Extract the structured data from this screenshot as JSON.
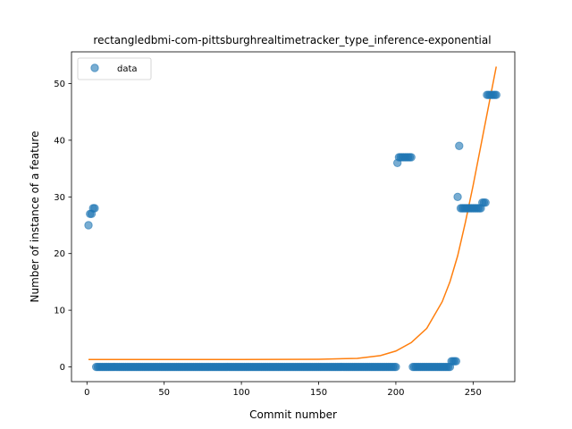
{
  "chart_data": {
    "type": "scatter",
    "title": "rectangledbmi-com-pittsburghrealtimetracker_type_inference-exponential",
    "xlabel": "Commit number",
    "ylabel": "Number of instance of a feature",
    "xlim": [
      -10,
      277
    ],
    "ylim": [
      -2.6,
      55.6
    ],
    "xticks": [
      0,
      50,
      100,
      150,
      200,
      250
    ],
    "yticks": [
      0,
      10,
      20,
      30,
      40,
      50
    ],
    "legend_position": "top-left",
    "grid": false,
    "series": [
      {
        "name": "data",
        "kind": "points",
        "color": "#1f77b4",
        "runs": [
          {
            "x_start": 1,
            "x_end": 1,
            "y": 25
          },
          {
            "x_start": 2,
            "x_end": 3,
            "y": 27
          },
          {
            "x_start": 4,
            "x_end": 5,
            "y": 28
          },
          {
            "x_start": 6,
            "x_end": 200,
            "y": 0
          },
          {
            "x_start": 201,
            "x_end": 201,
            "y": 36
          },
          {
            "x_start": 202,
            "x_end": 210,
            "y": 37
          },
          {
            "x_start": 211,
            "x_end": 235,
            "y": 0
          },
          {
            "x_start": 236,
            "x_end": 239,
            "y": 1
          },
          {
            "x_start": 240,
            "x_end": 240,
            "y": 30
          },
          {
            "x_start": 241,
            "x_end": 241,
            "y": 39
          },
          {
            "x_start": 242,
            "x_end": 255,
            "y": 28
          },
          {
            "x_start": 256,
            "x_end": 258,
            "y": 29
          },
          {
            "x_start": 259,
            "x_end": 265,
            "y": 48
          }
        ]
      },
      {
        "kind": "exponential-fit",
        "color": "#ff7f0e",
        "x": [
          1,
          50,
          100,
          150,
          175,
          190,
          200,
          210,
          220,
          230,
          235,
          240,
          245,
          250,
          255,
          260,
          265
        ],
        "y": [
          1.3,
          1.3,
          1.3,
          1.35,
          1.5,
          2.0,
          2.8,
          4.3,
          6.8,
          11.5,
          15.0,
          19.6,
          25.5,
          32.0,
          39.0,
          46.0,
          53.0
        ]
      }
    ]
  }
}
